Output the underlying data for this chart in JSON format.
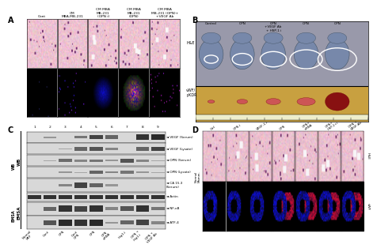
{
  "panel_A_label": "A",
  "panel_B_label": "B",
  "panel_C_label": "C",
  "panel_D_label": "D",
  "panel_A_col_labels": [
    "Cont",
    "CM\nMBA-MB-231",
    "CM MBA\nMB-231\n(OPN i)",
    "CM MBA\nMB-231\n(OPN)",
    "CM MBA\nMB-231 (OPN)+\n+ VEGF Ab"
  ],
  "panel_A_row_labels": [
    "H&E",
    "vWF/\npKDR"
  ],
  "panel_B_col_labels": [
    "Control",
    "OPN",
    "OPN\n+VEGF Ab\n+ HSP-1 i",
    "OPN",
    "OPN"
  ],
  "panel_C_wb_labels": [
    "VEGF (Serum)",
    "VEGF (Lysate)",
    "OPN (Serum)",
    "OPN (Lysate)",
    "CA 15.3\n(Serum)",
    "Actin"
  ],
  "panel_C_emsa_labels": [
    "NF-κB",
    "ATF-4"
  ],
  "panel_C_x_labels": [
    "Normal\nMEF",
    "Cont",
    "OPN",
    "Cont\nOPN",
    "OPN",
    "OPN\nsiRNA",
    "Hsp1-i",
    "OPN +\nHsp1-i",
    "OPN +\nVEGF Ab"
  ],
  "panel_D_col_labels": [
    "Ctrl",
    "OPN-i",
    "VEGF-1-i",
    "OPN",
    "OPN+\nsiRNA",
    "OPN+\nHSP-1+i",
    "OPN +\nVEGF-Ab"
  ],
  "bg_color": "#ffffff",
  "panel_label_fontsize": 7,
  "wb_band_patterns": [
    [
      0.0,
      0.25,
      0.0,
      0.45,
      0.75,
      0.55,
      0.0,
      0.85,
      0.9
    ],
    [
      0.0,
      0.0,
      0.15,
      0.55,
      0.65,
      0.35,
      0.0,
      0.55,
      0.75
    ],
    [
      0.0,
      0.15,
      0.5,
      0.35,
      0.45,
      0.25,
      0.65,
      0.35,
      0.15
    ],
    [
      0.0,
      0.0,
      0.25,
      0.15,
      0.55,
      0.35,
      0.45,
      0.25,
      0.15
    ],
    [
      0.0,
      0.0,
      0.35,
      0.75,
      0.55,
      0.25,
      0.0,
      0.0,
      0.0
    ],
    [
      0.85,
      0.85,
      0.85,
      0.85,
      0.85,
      0.85,
      0.85,
      0.85,
      0.85
    ]
  ],
  "emsa_band_patterns": [
    [
      0.0,
      0.55,
      0.85,
      0.75,
      0.85,
      0.35,
      0.65,
      0.85,
      0.45
    ],
    [
      0.0,
      0.65,
      0.9,
      0.85,
      0.9,
      0.25,
      0.55,
      0.75,
      0.35
    ]
  ]
}
